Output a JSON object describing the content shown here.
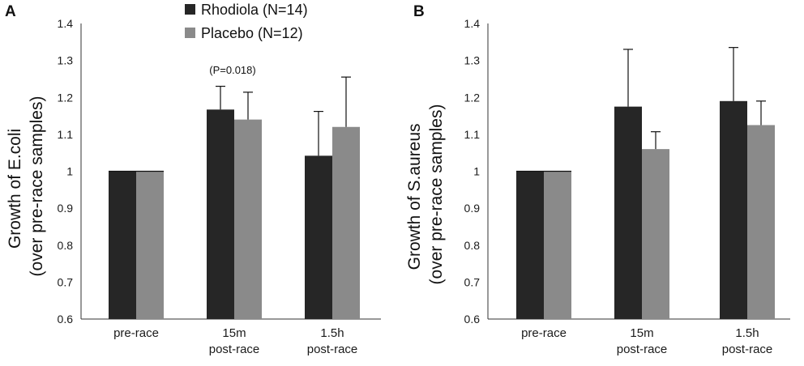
{
  "chart_data": [
    {
      "panel_label": "A",
      "type": "bar",
      "categories": [
        [
          "pre-race"
        ],
        [
          "15m",
          "post-race"
        ],
        [
          "1.5h",
          "post-race"
        ]
      ],
      "series": [
        {
          "name": "Rhodiola (N=14)",
          "color": "#262626",
          "values": [
            1.0,
            1.167,
            1.042
          ],
          "error": [
            0.0,
            0.063,
            0.12
          ]
        },
        {
          "name": "Placebo (N=12)",
          "color": "#8a8a8a",
          "values": [
            1.0,
            1.14,
            1.12
          ],
          "error": [
            0.0,
            0.074,
            0.135
          ]
        }
      ],
      "ylabel": [
        "Growth of E.coli",
        "(over pre-race samples)"
      ],
      "ylim": [
        0.6,
        1.4
      ],
      "yticks": [
        "0.6",
        "0.7",
        "0.8",
        "0.9",
        "1",
        "1.1",
        "1.2",
        "1.3",
        "1.4"
      ],
      "annotation": {
        "text": "(P=0.018)",
        "category_index": 1
      },
      "legend": "top-left"
    },
    {
      "panel_label": "B",
      "type": "bar",
      "categories": [
        [
          "pre-race"
        ],
        [
          "15m",
          "post-race"
        ],
        [
          "1.5h",
          "post-race"
        ]
      ],
      "series": [
        {
          "name": "Rhodiola (N=14)",
          "color": "#262626",
          "values": [
            1.0,
            1.175,
            1.19
          ],
          "error": [
            0.0,
            0.155,
            0.145
          ]
        },
        {
          "name": "Placebo (N=12)",
          "color": "#8a8a8a",
          "values": [
            1.0,
            1.06,
            1.125
          ],
          "error": [
            0.0,
            0.047,
            0.065
          ]
        }
      ],
      "ylabel": [
        "Growth of S.aureus",
        "(over pre-race samples)"
      ],
      "ylim": [
        0.6,
        1.4
      ],
      "yticks": [
        "0.6",
        "0.7",
        "0.8",
        "0.9",
        "1",
        "1.1",
        "1.2",
        "1.3",
        "1.4"
      ]
    }
  ]
}
